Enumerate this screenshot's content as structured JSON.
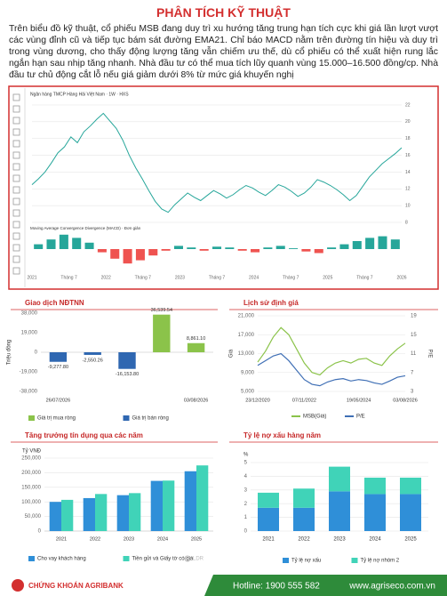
{
  "header": {
    "title": "PHÂN TÍCH KỸ THUẬT"
  },
  "body": {
    "paragraph": "Trên biểu đồ kỹ thuật, cổ phiếu MSB đang duy trì xu hướng tăng trung hạn tích cực khi giá lần lượt vượt các vùng đỉnh cũ và tiếp tục bám sát đường EMA21. Chỉ báo MACD nằm trên đường tín hiệu và duy trì trong vùng dương, cho thấy động lượng tăng vẫn chiếm ưu thế, dù cổ phiếu có thể xuất hiện rung lắc ngắn hạn sau nhịp tăng nhanh. Nhà đầu tư có thể mua tích lũy quanh vùng 15.000–16.500 đồng/cp. Nhà đầu tư chủ động cắt lỗ nếu giá giảm dưới 8% từ mức giá khuyến nghị"
  },
  "chart_data": [
    {
      "type": "line",
      "title": "Ngân hàng TMCP Hàng Hải Việt Nam · 1W · HXS",
      "color": "#26a69a",
      "yaxis_position": "right",
      "values": [
        12.5,
        13.2,
        14.0,
        15.1,
        16.3,
        17.0,
        18.2,
        17.5,
        18.8,
        19.5,
        20.3,
        21.0,
        20.1,
        19.2,
        17.8,
        16.0,
        14.5,
        13.2,
        11.8,
        10.5,
        9.6,
        9.2,
        10.1,
        10.8,
        11.5,
        11.0,
        10.6,
        11.2,
        11.8,
        11.4,
        10.9,
        11.3,
        11.9,
        12.4,
        12.1,
        11.6,
        11.2,
        11.8,
        12.5,
        12.2,
        11.7,
        11.1,
        11.5,
        12.2,
        13.1,
        12.8,
        12.4,
        11.9,
        11.3,
        10.6,
        11.2,
        12.3,
        13.4,
        14.2,
        15.0,
        15.6,
        16.2,
        16.9
      ],
      "ylim": [
        8,
        22
      ],
      "yticks": [
        8,
        10,
        12,
        14,
        16,
        18,
        20,
        22
      ],
      "grid": true,
      "xtick_labels": [
        "2021",
        "Tháng 7",
        "2022",
        "Tháng 7",
        "2023",
        "Tháng 7",
        "2024",
        "Tháng 7",
        "2025",
        "Tháng 7",
        "2026"
      ],
      "macd_title": "Moving Average Convergence Divergence (MACD) · Đơn giản",
      "macd_values": [
        0.3,
        0.6,
        0.9,
        0.7,
        0.4,
        -0.2,
        -0.6,
        -0.9,
        -0.7,
        -0.4,
        -0.1,
        0.2,
        0.1,
        -0.1,
        0.15,
        0.1,
        -0.1,
        -0.2,
        0.1,
        0.2,
        0.05,
        -0.15,
        -0.25,
        0.1,
        0.3,
        0.5,
        0.7,
        0.8,
        0.6
      ],
      "macd_lim": [
        -1,
        1
      ],
      "positive_color": "#26a69a",
      "negative_color": "#ef5350"
    },
    {
      "type": "bar",
      "title": "Giao dịch NĐTNN",
      "y_label": "Triệu đồng",
      "categories": [
        "26/07/2026",
        null,
        null,
        null,
        "03/08/2026"
      ],
      "values": [
        -9277.8,
        -2550.26,
        -16153.8,
        36539.54,
        8861.1
      ],
      "value_labels": [
        "-9,277.80",
        "-2,550.26",
        "-16,153.80",
        "36,539.54",
        "8,861.10"
      ],
      "ylim": [
        -38000,
        38000
      ],
      "yticks": [
        {
          "value": -38000,
          "label": "-38,000"
        },
        {
          "value": -19000,
          "label": "-19,000"
        },
        0,
        {
          "value": 19000,
          "label": "19,000"
        },
        {
          "value": 38000,
          "label": "38,000"
        }
      ],
      "positive_color": "#8bc34a",
      "negative_color": "#2f67b1",
      "legend": [
        {
          "name": "Giá trị mua ròng",
          "color": "#8bc34a"
        },
        {
          "name": "Giá trị bán ròng",
          "color": "#2f67b1"
        }
      ]
    },
    {
      "type": "line",
      "title": "Lịch sử định giá",
      "y_label": "Giá",
      "y2_label": "P/E",
      "categories": [
        "23/12/2020",
        null,
        null,
        null,
        null,
        null,
        "07/11/2022",
        null,
        null,
        null,
        null,
        null,
        null,
        "19/05/2024",
        null,
        null,
        null,
        null,
        null,
        "03/08/2026"
      ],
      "series": [
        {
          "name": "MSB(Giá)",
          "color": "#8bc34a",
          "values": [
            11200,
            13500,
            16500,
            18500,
            17000,
            14000,
            11000,
            9000,
            8500,
            10000,
            11000,
            11500,
            11000,
            11800,
            12000,
            11000,
            10500,
            12500,
            14000,
            15200
          ]
        },
        {
          "name": "P/E",
          "color": "#3f6fb5",
          "axis": "y2",
          "values": [
            8.5,
            9.5,
            10.5,
            11,
            9.5,
            7.5,
            5.5,
            4.5,
            4.2,
            5,
            5.5,
            5.7,
            5.2,
            5.5,
            5.3,
            4.8,
            4.5,
            5.2,
            6,
            6.3
          ]
        }
      ],
      "ylim": [
        5000,
        21000
      ],
      "yticks": [
        {
          "value": 5000,
          "label": "5,000"
        },
        {
          "value": 9000,
          "label": "9,000"
        },
        {
          "value": 13000,
          "label": "13,000"
        },
        {
          "value": 17000,
          "label": "17,000"
        },
        {
          "value": 21000,
          "label": "21,000"
        }
      ],
      "y2lim": [
        3,
        19
      ],
      "y2ticks": [
        3,
        7,
        11,
        15,
        19
      ],
      "grid": true
    },
    {
      "type": "bar",
      "title": "Tăng trưởng tín dụng qua các năm",
      "y_label": "Tỷ VNĐ",
      "categories": [
        "2021",
        "2022",
        "2023",
        "2024",
        "2025"
      ],
      "series": [
        {
          "name": "Cho vay khách hàng",
          "color": "#2f8fd8",
          "values": [
            100000,
            113000,
            123000,
            172000,
            205000
          ]
        },
        {
          "name": "Tiền gửi và Giấy tờ có giá",
          "color": "#40d3b8",
          "values": [
            107000,
            127000,
            130000,
            173000,
            225000
          ]
        }
      ],
      "hidden_legend": "LDR",
      "ylim": [
        0,
        250000
      ],
      "yticks": [
        0,
        {
          "value": 50000,
          "label": "50,000"
        },
        {
          "value": 100000,
          "label": "100,000"
        },
        {
          "value": 150000,
          "label": "150,000"
        },
        {
          "value": 200000,
          "label": "200,000"
        },
        {
          "value": 250000,
          "label": "250,000"
        }
      ],
      "grid": true
    },
    {
      "type": "stacked_bar",
      "title": "Tỷ lệ nợ xấu hàng năm",
      "y_label": "%",
      "categories": [
        "2021",
        "2022",
        "2023",
        "2024",
        "2025"
      ],
      "series": [
        {
          "name": "Tỷ lệ nợ xấu",
          "color": "#2f8fd8",
          "values": [
            1.7,
            1.7,
            2.9,
            2.7,
            2.7
          ]
        },
        {
          "name": "Tỷ lệ nợ nhóm 2",
          "color": "#40d3b8",
          "values": [
            1.1,
            1.4,
            1.8,
            1.2,
            1.2
          ]
        }
      ],
      "ylim": [
        0,
        5
      ],
      "yticks": [
        0,
        1,
        2,
        3,
        4,
        5
      ],
      "grid": true
    }
  ],
  "footer": {
    "brand": "CHỨNG KHOÁN AGRIBANK",
    "hotline": "Hotline: 1900 555 582",
    "website": "www.agriseco.com.vn"
  }
}
